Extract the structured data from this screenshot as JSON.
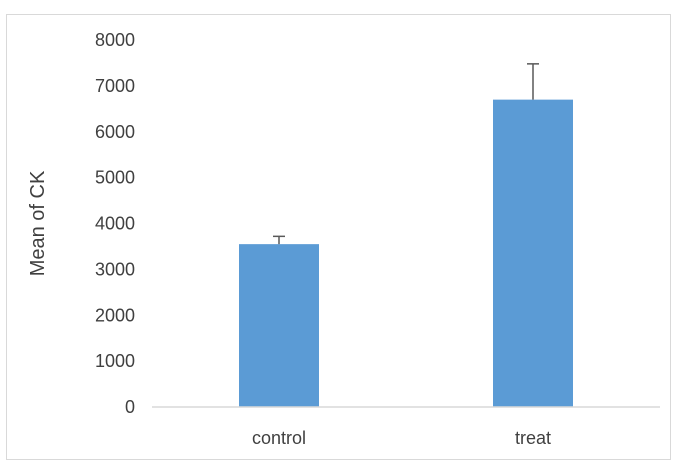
{
  "chart_data": {
    "type": "bar",
    "title": "",
    "xlabel": "",
    "ylabel": "Mean of CK",
    "categories": [
      "control",
      "treat"
    ],
    "values": [
      3550,
      6700
    ],
    "error_bars_plus": [
      170,
      780
    ],
    "ylim": [
      0,
      8000
    ],
    "yticks": [
      "0",
      "1000",
      "2000",
      "3000",
      "4000",
      "5000",
      "6000",
      "7000",
      "8000"
    ],
    "grid": false,
    "legend": "none",
    "colors": {
      "bar": "#5b9bd5",
      "error_bar": "#595959",
      "axis": "#d9d9d9",
      "text": "#404040"
    }
  }
}
